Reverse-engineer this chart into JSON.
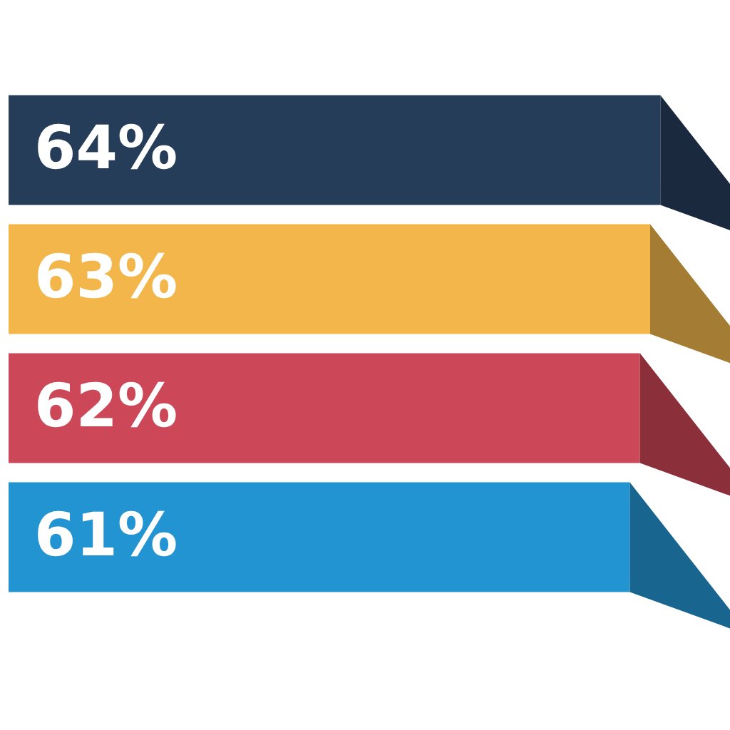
{
  "chart_data": {
    "type": "bar",
    "orientation": "horizontal",
    "categories": [
      null,
      null,
      null,
      null
    ],
    "values": [
      64,
      63,
      62,
      61
    ],
    "colors": [
      "#263d5a",
      "#f3b64b",
      "#cc4757",
      "#2394d2"
    ],
    "legend": false,
    "value_labels": [
      "64%",
      "63%",
      "62%",
      "61%"
    ]
  }
}
